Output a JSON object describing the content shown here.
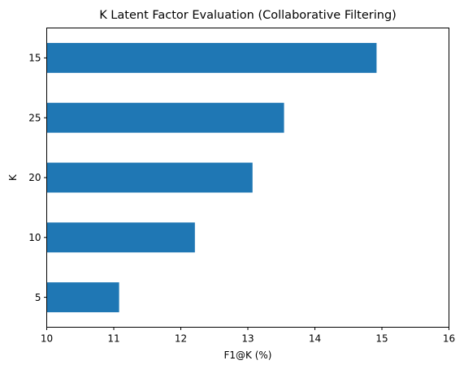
{
  "chart_data": {
    "type": "bar",
    "orientation": "horizontal",
    "title": "K Latent Factor Evaluation (Collaborative Filtering)",
    "xlabel": "F1@K (%)",
    "ylabel": "K",
    "categories": [
      "15",
      "25",
      "20",
      "10",
      "5"
    ],
    "values": [
      14.92,
      13.54,
      13.07,
      12.21,
      11.08
    ],
    "xlim": [
      10,
      16
    ],
    "xticks": [
      "10",
      "11",
      "12",
      "13",
      "14",
      "15",
      "16"
    ],
    "grid": false,
    "legend": "none",
    "bar_color": "#1f77b4"
  }
}
